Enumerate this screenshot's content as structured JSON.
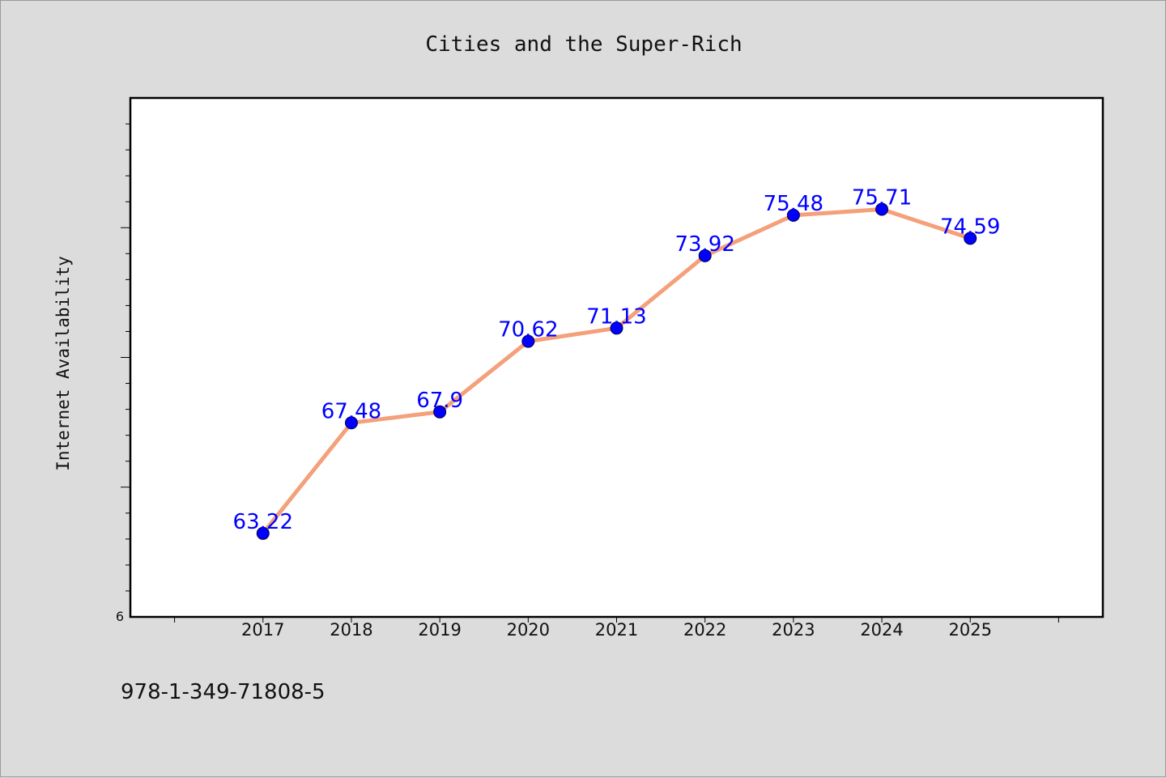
{
  "chart_data": {
    "type": "line",
    "title": "Cities and the Super-Rich",
    "xlabel": "",
    "ylabel": "Internet Availability",
    "categories": [
      "2017",
      "2018",
      "2019",
      "2020",
      "2021",
      "2022",
      "2023",
      "2024",
      "2025"
    ],
    "values": [
      63.22,
      67.48,
      67.9,
      70.62,
      71.13,
      73.92,
      75.48,
      75.71,
      74.59
    ],
    "data_labels": [
      "63.22",
      "67.48",
      "67.9",
      "70.62",
      "71.13",
      "73.92",
      "75.48",
      "75.71",
      "74.59"
    ],
    "ylim": [
      60,
      80
    ],
    "xlim": [
      2015.5,
      2026.5
    ],
    "ytick_labels": [
      "6"
    ],
    "grid": false,
    "legend": "none"
  },
  "colors": {
    "line": "#f4a07a",
    "marker": "#0000ff",
    "label": "#0000ff",
    "background": "#dcdcdc",
    "plot_area": "#ffffff"
  },
  "footer": {
    "text": "978-1-349-71808-5"
  }
}
